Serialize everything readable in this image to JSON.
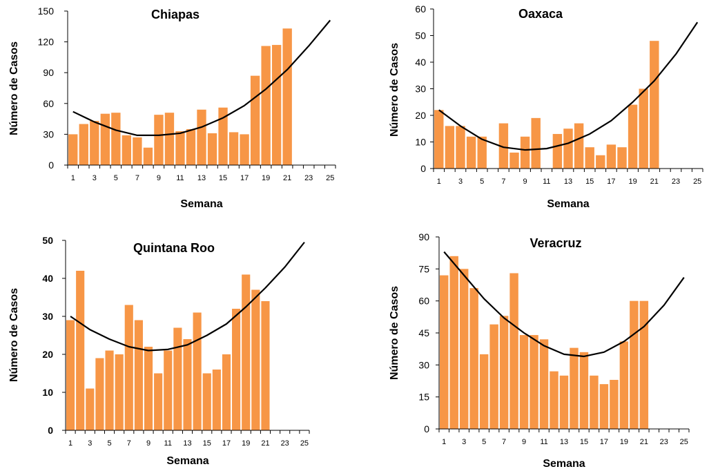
{
  "chart_data": [
    {
      "type": "bar",
      "title": "Chiapas",
      "xlabel": "Semana",
      "ylabel": "Número de Casos",
      "x_ticks": [
        "1",
        "3",
        "5",
        "7",
        "9",
        "11",
        "13",
        "15",
        "17",
        "19",
        "21",
        "23",
        "25"
      ],
      "y_ticks": [
        "0",
        "30",
        "60",
        "90",
        "120",
        "150"
      ],
      "ylim": [
        0,
        150
      ],
      "xlim": [
        1,
        25
      ],
      "bar_color": "#F79646",
      "categories": [
        1,
        2,
        3,
        4,
        5,
        6,
        7,
        8,
        9,
        10,
        11,
        12,
        13,
        14,
        15,
        16,
        17,
        18,
        19,
        20,
        21
      ],
      "values": [
        30,
        40,
        43,
        50,
        51,
        29,
        27,
        17,
        49,
        51,
        33,
        35,
        54,
        31,
        56,
        32,
        30,
        87,
        116,
        117,
        133
      ],
      "trendline": {
        "type": "polynomial-2",
        "x": [
          1,
          3,
          5,
          7,
          9,
          11,
          13,
          15,
          17,
          19,
          21,
          23,
          25
        ],
        "y": [
          52,
          42,
          34,
          29,
          29,
          31,
          37,
          46,
          58,
          74,
          93,
          116,
          141
        ],
        "color": "#000000"
      },
      "bold_ticks": false
    },
    {
      "type": "bar",
      "title": "Oaxaca",
      "xlabel": "Semana",
      "ylabel": "Número de Casos",
      "x_ticks": [
        "1",
        "3",
        "5",
        "7",
        "9",
        "11",
        "13",
        "15",
        "17",
        "19",
        "21",
        "23",
        "25"
      ],
      "y_ticks": [
        "0",
        "10",
        "20",
        "30",
        "40",
        "50",
        "60"
      ],
      "ylim": [
        0,
        60
      ],
      "xlim": [
        1,
        25
      ],
      "bar_color": "#F79646",
      "categories": [
        1,
        2,
        3,
        4,
        5,
        6,
        7,
        8,
        9,
        10,
        11,
        12,
        13,
        14,
        15,
        16,
        17,
        18,
        19,
        20,
        21
      ],
      "values": [
        22,
        16,
        16,
        12,
        12,
        0,
        17,
        6,
        12,
        19,
        0,
        13,
        15,
        17,
        8,
        5,
        9,
        8,
        24,
        30,
        48
      ],
      "trendline": {
        "type": "polynomial-2",
        "x": [
          1,
          3,
          5,
          7,
          9,
          11,
          13,
          15,
          17,
          19,
          21,
          23,
          25
        ],
        "y": [
          22,
          16,
          11,
          8,
          7,
          7.5,
          9.5,
          13,
          18,
          25,
          33,
          43,
          55
        ],
        "color": "#000000"
      },
      "bold_ticks": false
    },
    {
      "type": "bar",
      "title": "Quintana Roo",
      "xlabel": "Semana",
      "ylabel": "Número de Casos",
      "x_ticks": [
        "1",
        "3",
        "5",
        "7",
        "9",
        "11",
        "13",
        "15",
        "17",
        "19",
        "21",
        "23",
        "25"
      ],
      "y_ticks": [
        "0",
        "10",
        "20",
        "30",
        "40",
        "50"
      ],
      "ylim": [
        0,
        50
      ],
      "xlim": [
        1,
        25
      ],
      "bar_color": "#F79646",
      "categories": [
        1,
        2,
        3,
        4,
        5,
        6,
        7,
        8,
        9,
        10,
        11,
        12,
        13,
        14,
        15,
        16,
        17,
        18,
        19,
        20,
        21
      ],
      "values": [
        29,
        42,
        11,
        19,
        21,
        20,
        33,
        29,
        22,
        15,
        21,
        27,
        24,
        31,
        15,
        16,
        20,
        32,
        41,
        37,
        34
      ],
      "trendline": {
        "type": "polynomial-2",
        "x": [
          1,
          3,
          5,
          7,
          9,
          11,
          13,
          15,
          17,
          19,
          21,
          23,
          25
        ],
        "y": [
          30,
          26.5,
          24,
          22,
          21,
          21.3,
          22.5,
          25,
          28,
          32.5,
          37.5,
          43,
          49.5
        ],
        "color": "#000000"
      },
      "bold_ticks": true
    },
    {
      "type": "bar",
      "title": "Veracruz",
      "xlabel": "Semana",
      "ylabel": "Número de Casos",
      "x_ticks": [
        "1",
        "3",
        "5",
        "7",
        "9",
        "11",
        "13",
        "15",
        "17",
        "19",
        "21",
        "23",
        "25"
      ],
      "y_ticks": [
        "0",
        "15",
        "30",
        "45",
        "60",
        "75",
        "90"
      ],
      "ylim": [
        0,
        90
      ],
      "xlim": [
        1,
        25
      ],
      "bar_color": "#F79646",
      "categories": [
        1,
        2,
        3,
        4,
        5,
        6,
        7,
        8,
        9,
        10,
        11,
        12,
        13,
        14,
        15,
        16,
        17,
        18,
        19,
        20,
        21
      ],
      "values": [
        72,
        81,
        75,
        66,
        35,
        49,
        53,
        73,
        44,
        44,
        42,
        27,
        25,
        38,
        36,
        25,
        21,
        23,
        41,
        60,
        60
      ],
      "trendline": {
        "type": "polynomial-2",
        "x": [
          1,
          3,
          5,
          7,
          9,
          11,
          13,
          15,
          17,
          19,
          21,
          23,
          25
        ],
        "y": [
          83,
          72,
          61,
          52,
          45,
          39,
          35,
          34,
          36,
          41,
          48,
          58,
          71
        ],
        "color": "#000000"
      },
      "bold_ticks": false
    }
  ]
}
